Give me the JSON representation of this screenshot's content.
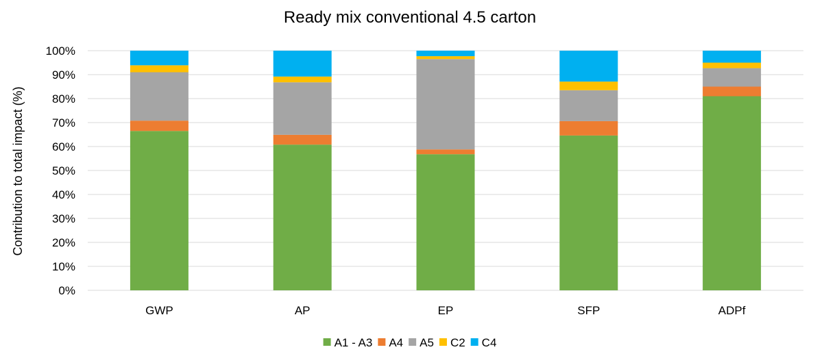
{
  "chart_data": {
    "type": "bar",
    "stacked": true,
    "title": "Ready mix conventional 4.5 carton",
    "xlabel": "",
    "ylabel": "Contribution to total impact (%)",
    "ylim": [
      0,
      100
    ],
    "y_ticks": [
      "0%",
      "10%",
      "20%",
      "30%",
      "40%",
      "50%",
      "60%",
      "70%",
      "80%",
      "90%",
      "100%"
    ],
    "grid": true,
    "legend_position": "bottom",
    "categories": [
      "GWP",
      "AP",
      "EP",
      "SFP",
      "ADPf"
    ],
    "series": [
      {
        "name": "A1 - A3",
        "color": "#70ad47",
        "values": [
          66.5,
          60.8,
          56.8,
          64.6,
          81.0
        ]
      },
      {
        "name": "A4",
        "color": "#ed7d31",
        "values": [
          4.3,
          4.1,
          2.0,
          6.0,
          4.0
        ]
      },
      {
        "name": "A5",
        "color": "#a5a5a5",
        "values": [
          20.2,
          21.9,
          37.7,
          12.9,
          7.7
        ]
      },
      {
        "name": "C2",
        "color": "#ffc000",
        "values": [
          2.9,
          2.4,
          1.2,
          3.6,
          2.3
        ]
      },
      {
        "name": "C4",
        "color": "#00b0f0",
        "values": [
          6.1,
          10.8,
          2.3,
          12.9,
          5.0
        ]
      }
    ]
  }
}
